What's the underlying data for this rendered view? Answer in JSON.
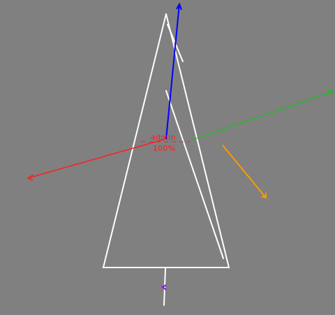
{
  "viewport": {
    "background_color": "#808080"
  },
  "overlay": {
    "object_name": "admin",
    "zoom_level": "100%",
    "label_color": "#ff1e1e"
  },
  "gizmo": {
    "x_axis_color": "#ff1e1e",
    "y_axis_color": "#00d000",
    "z_axis_color": "#0000ff",
    "extra_axis_color": "#ff9900"
  },
  "object": {
    "shape": "triangle wireframe",
    "stroke_color": "#ffffff"
  },
  "anchor": {
    "color": "#9900ff"
  }
}
